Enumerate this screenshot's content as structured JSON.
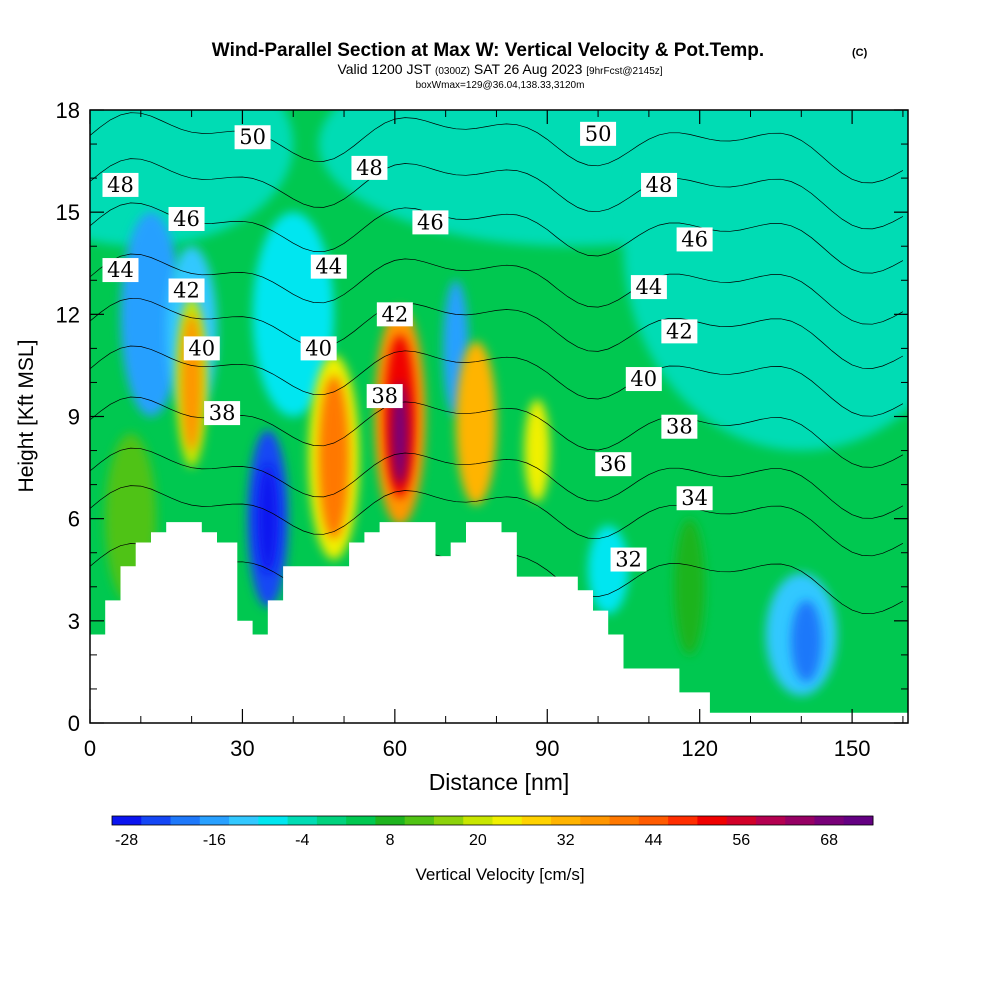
{
  "header": {
    "title": "Wind-Parallel Section at Max W: Vertical Velocity & Pot.Temp.",
    "copyright": "(C)",
    "valid_prefix": "Valid 1200 JST",
    "valid_zulu": "(0300Z)",
    "valid_date": "SAT 26 Aug 2023",
    "forecast": "[9hrFcst@2145z]",
    "box_info": "boxWmax=129@36.04,138.33,3120m"
  },
  "chart_data": {
    "type": "heatmap",
    "xlabel": "Distance [nm]",
    "ylabel": "Height [Kft MSL]",
    "xlim": [
      0,
      161
    ],
    "ylim": [
      0,
      18
    ],
    "x_ticks": [
      0,
      30,
      60,
      90,
      120,
      150
    ],
    "y_ticks": [
      0,
      3,
      6,
      9,
      12,
      15,
      18
    ],
    "colorbar": {
      "label": "Vertical Velocity [cm/s]",
      "tick_labels": [
        "-28",
        "-16",
        "-4",
        "8",
        "20",
        "32",
        "44",
        "56",
        "68"
      ],
      "levels": [
        -28,
        -24,
        -20,
        -16,
        -12,
        -8,
        -4,
        0,
        4,
        8,
        12,
        16,
        20,
        24,
        28,
        32,
        36,
        40,
        44,
        48,
        52,
        56,
        60,
        64,
        68,
        72
      ],
      "colors": [
        "#0a14f0",
        "#1446f5",
        "#1e78fa",
        "#28a0ff",
        "#32c8ff",
        "#00e6f0",
        "#00dcb4",
        "#00d27d",
        "#00c850",
        "#1eb41e",
        "#50c314",
        "#8cd20a",
        "#c8e600",
        "#f0f000",
        "#ffd200",
        "#ffb400",
        "#ff9600",
        "#ff7800",
        "#ff5a00",
        "#ff2d00",
        "#f00000",
        "#d20028",
        "#b40050",
        "#960064",
        "#780078",
        "#640082"
      ]
    },
    "theta_isentropes": {
      "labels": [
        {
          "value": 50,
          "x": 32,
          "y": 17.2
        },
        {
          "value": 50,
          "x": 100,
          "y": 17.3
        },
        {
          "value": 48,
          "x": 6,
          "y": 15.8
        },
        {
          "value": 48,
          "x": 55,
          "y": 16.3
        },
        {
          "value": 48,
          "x": 112,
          "y": 15.8
        },
        {
          "value": 46,
          "x": 19,
          "y": 14.8
        },
        {
          "value": 46,
          "x": 67,
          "y": 14.7
        },
        {
          "value": 46,
          "x": 119,
          "y": 14.2
        },
        {
          "value": 44,
          "x": 6,
          "y": 13.3
        },
        {
          "value": 44,
          "x": 47,
          "y": 13.4
        },
        {
          "value": 44,
          "x": 110,
          "y": 12.8
        },
        {
          "value": 42,
          "x": 19,
          "y": 12.7
        },
        {
          "value": 42,
          "x": 60,
          "y": 12.0
        },
        {
          "value": 42,
          "x": 116,
          "y": 11.5
        },
        {
          "value": 40,
          "x": 22,
          "y": 11.0
        },
        {
          "value": 40,
          "x": 45,
          "y": 11.0
        },
        {
          "value": 40,
          "x": 109,
          "y": 10.1
        },
        {
          "value": 38,
          "x": 26,
          "y": 9.1
        },
        {
          "value": 38,
          "x": 58,
          "y": 9.6
        },
        {
          "value": 38,
          "x": 116,
          "y": 8.7
        },
        {
          "value": 36,
          "x": 103,
          "y": 7.6
        },
        {
          "value": 34,
          "x": 119,
          "y": 6.6
        },
        {
          "value": 32,
          "x": 106,
          "y": 4.8
        }
      ]
    },
    "terrain_kft": [
      [
        0,
        2.6
      ],
      [
        3,
        3.6
      ],
      [
        6,
        4.6
      ],
      [
        9,
        5.3
      ],
      [
        12,
        5.6
      ],
      [
        15,
        5.9
      ],
      [
        22,
        5.6
      ],
      [
        25,
        5.3
      ],
      [
        29,
        3.0
      ],
      [
        32,
        2.6
      ],
      [
        35,
        3.6
      ],
      [
        38,
        4.6
      ],
      [
        45,
        4.6
      ],
      [
        51,
        5.3
      ],
      [
        54,
        5.6
      ],
      [
        57,
        5.9
      ],
      [
        63,
        5.9
      ],
      [
        68,
        4.9
      ],
      [
        71,
        5.3
      ],
      [
        74,
        5.9
      ],
      [
        81,
        5.6
      ],
      [
        84,
        4.3
      ],
      [
        91,
        4.3
      ],
      [
        96,
        3.9
      ],
      [
        99,
        3.3
      ],
      [
        102,
        2.6
      ],
      [
        105,
        1.6
      ],
      [
        112,
        1.6
      ],
      [
        116,
        0.9
      ],
      [
        122,
        0.3
      ],
      [
        161,
        0.3
      ]
    ]
  },
  "colors": {
    "background_field": "#00c850",
    "terrain": "#ffffff",
    "contour": "#000000"
  }
}
